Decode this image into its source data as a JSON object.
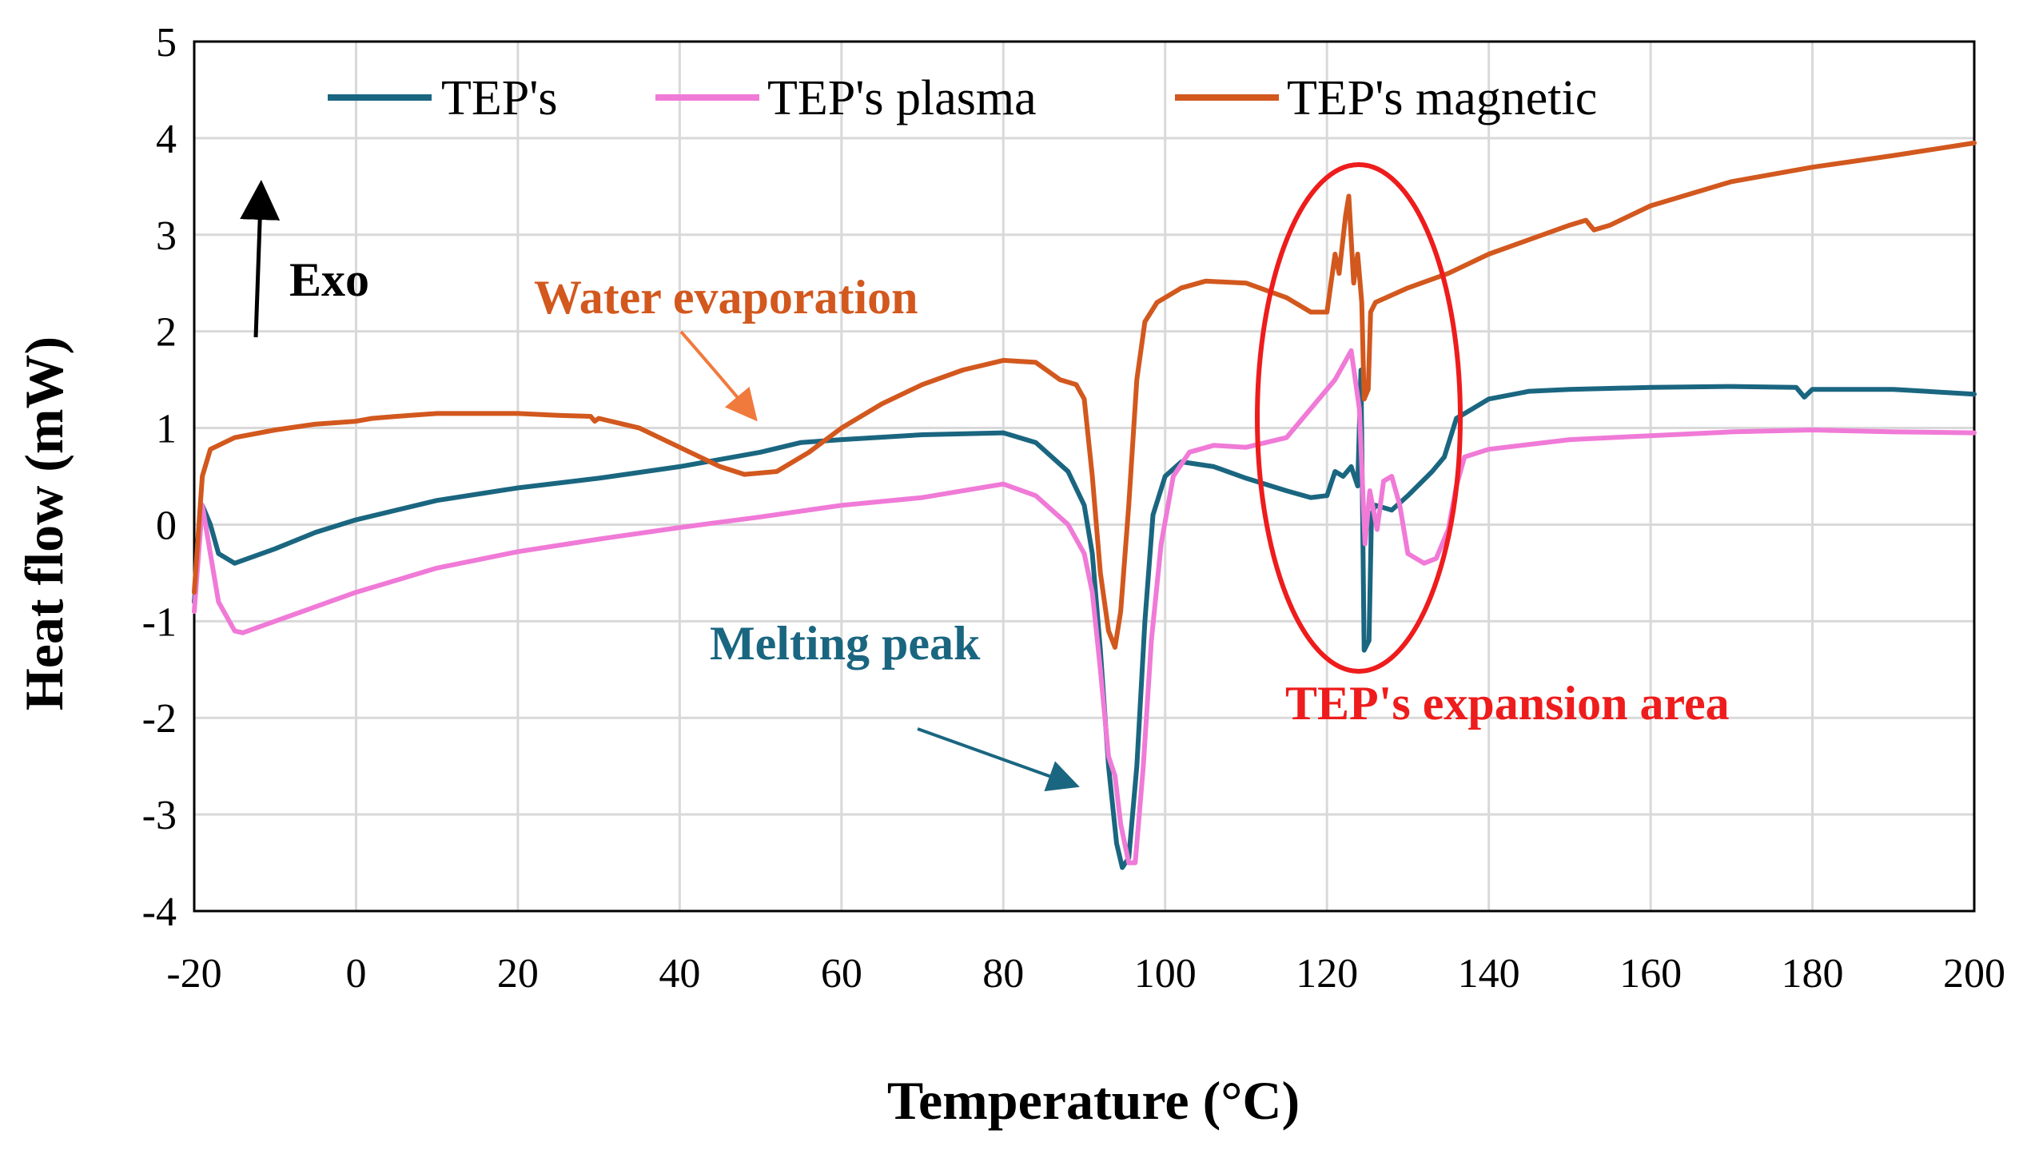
{
  "chart_data": {
    "type": "line",
    "xlabel": "Temperature (°C)",
    "ylabel": "Heat flow (mW)",
    "xlim": [
      -20,
      200
    ],
    "ylim": [
      -4,
      5
    ],
    "xticks": [
      -20,
      0,
      20,
      40,
      60,
      80,
      100,
      120,
      140,
      160,
      180,
      200
    ],
    "yticks": [
      -4,
      -3,
      -2,
      -1,
      0,
      1,
      2,
      3,
      4,
      5
    ],
    "grid": true,
    "legend_position": "top",
    "series": [
      {
        "name": "TEP's",
        "color": "#1a6680",
        "points": [
          [
            -20,
            -0.8
          ],
          [
            -19,
            0.2
          ],
          [
            -18,
            0
          ],
          [
            -17,
            -0.3
          ],
          [
            -15,
            -0.4
          ],
          [
            -10,
            -0.25
          ],
          [
            -5,
            -0.08
          ],
          [
            0,
            0.05
          ],
          [
            10,
            0.25
          ],
          [
            20,
            0.38
          ],
          [
            30,
            0.48
          ],
          [
            40,
            0.6
          ],
          [
            50,
            0.75
          ],
          [
            55,
            0.85
          ],
          [
            60,
            0.88
          ],
          [
            70,
            0.93
          ],
          [
            80,
            0.95
          ],
          [
            84,
            0.85
          ],
          [
            88,
            0.55
          ],
          [
            90,
            0.2
          ],
          [
            91,
            -0.3
          ],
          [
            92,
            -1.3
          ],
          [
            93,
            -2.5
          ],
          [
            94,
            -3.3
          ],
          [
            94.7,
            -3.55
          ],
          [
            95.5,
            -3.45
          ],
          [
            96.5,
            -2.5
          ],
          [
            97.5,
            -1.0
          ],
          [
            98.5,
            0.1
          ],
          [
            100,
            0.5
          ],
          [
            102,
            0.65
          ],
          [
            106,
            0.6
          ],
          [
            110,
            0.48
          ],
          [
            115,
            0.35
          ],
          [
            118,
            0.28
          ],
          [
            120,
            0.3
          ],
          [
            121,
            0.55
          ],
          [
            122,
            0.5
          ],
          [
            123,
            0.6
          ],
          [
            123.8,
            0.4
          ],
          [
            124.2,
            1.6
          ],
          [
            124.6,
            -1.3
          ],
          [
            125.2,
            -1.2
          ],
          [
            125.5,
            0.1
          ],
          [
            126,
            0.2
          ],
          [
            128,
            0.15
          ],
          [
            130,
            0.3
          ],
          [
            133,
            0.55
          ],
          [
            134.5,
            0.7
          ],
          [
            136,
            1.1
          ],
          [
            138,
            1.2
          ],
          [
            140,
            1.3
          ],
          [
            145,
            1.38
          ],
          [
            150,
            1.4
          ],
          [
            160,
            1.42
          ],
          [
            170,
            1.43
          ],
          [
            178,
            1.42
          ],
          [
            179,
            1.32
          ],
          [
            180,
            1.4
          ],
          [
            190,
            1.4
          ],
          [
            200,
            1.35
          ]
        ]
      },
      {
        "name": "TEP's plasma",
        "color": "#f07ad7",
        "points": [
          [
            -20,
            -0.9
          ],
          [
            -19,
            0.2
          ],
          [
            -18,
            -0.3
          ],
          [
            -17,
            -0.8
          ],
          [
            -15,
            -1.1
          ],
          [
            -14,
            -1.12
          ],
          [
            -10,
            -1.0
          ],
          [
            -5,
            -0.85
          ],
          [
            0,
            -0.7
          ],
          [
            10,
            -0.45
          ],
          [
            20,
            -0.28
          ],
          [
            30,
            -0.15
          ],
          [
            40,
            -0.03
          ],
          [
            50,
            0.08
          ],
          [
            60,
            0.2
          ],
          [
            70,
            0.28
          ],
          [
            75,
            0.35
          ],
          [
            80,
            0.42
          ],
          [
            84,
            0.3
          ],
          [
            88,
            0.0
          ],
          [
            90,
            -0.3
          ],
          [
            91,
            -0.7
          ],
          [
            92,
            -1.5
          ],
          [
            93,
            -2.4
          ],
          [
            93.8,
            -2.6
          ],
          [
            94.5,
            -3.1
          ],
          [
            95.5,
            -3.5
          ],
          [
            96.3,
            -3.5
          ],
          [
            97.3,
            -2.5
          ],
          [
            98.3,
            -1.2
          ],
          [
            99.5,
            -0.2
          ],
          [
            101,
            0.5
          ],
          [
            103,
            0.75
          ],
          [
            106,
            0.82
          ],
          [
            110,
            0.8
          ],
          [
            115,
            0.9
          ],
          [
            118,
            1.2
          ],
          [
            121,
            1.5
          ],
          [
            123,
            1.8
          ],
          [
            124,
            1.2
          ],
          [
            124.7,
            -0.2
          ],
          [
            125.3,
            0.35
          ],
          [
            126.2,
            -0.05
          ],
          [
            127,
            0.45
          ],
          [
            128,
            0.5
          ],
          [
            129,
            0.2
          ],
          [
            130,
            -0.3
          ],
          [
            132,
            -0.4
          ],
          [
            133.5,
            -0.35
          ],
          [
            135,
            -0.05
          ],
          [
            136,
            0.4
          ],
          [
            137,
            0.7
          ],
          [
            140,
            0.78
          ],
          [
            150,
            0.88
          ],
          [
            160,
            0.92
          ],
          [
            170,
            0.96
          ],
          [
            180,
            0.98
          ],
          [
            190,
            0.96
          ],
          [
            200,
            0.95
          ]
        ]
      },
      {
        "name": "TEP's magnetic",
        "color": "#d2581e",
        "points": [
          [
            -20,
            -0.7
          ],
          [
            -19,
            0.5
          ],
          [
            -18,
            0.78
          ],
          [
            -15,
            0.9
          ],
          [
            -10,
            0.98
          ],
          [
            -5,
            1.04
          ],
          [
            0,
            1.07
          ],
          [
            2,
            1.1
          ],
          [
            5,
            1.12
          ],
          [
            10,
            1.15
          ],
          [
            20,
            1.15
          ],
          [
            25,
            1.13
          ],
          [
            29,
            1.12
          ],
          [
            29.5,
            1.07
          ],
          [
            30,
            1.1
          ],
          [
            35,
            1.0
          ],
          [
            40,
            0.8
          ],
          [
            45,
            0.6
          ],
          [
            48,
            0.52
          ],
          [
            52,
            0.55
          ],
          [
            56,
            0.75
          ],
          [
            60,
            1.0
          ],
          [
            65,
            1.25
          ],
          [
            70,
            1.45
          ],
          [
            75,
            1.6
          ],
          [
            80,
            1.7
          ],
          [
            84,
            1.68
          ],
          [
            87,
            1.5
          ],
          [
            89,
            1.45
          ],
          [
            90,
            1.3
          ],
          [
            91,
            0.5
          ],
          [
            92,
            -0.5
          ],
          [
            93,
            -1.1
          ],
          [
            93.8,
            -1.27
          ],
          [
            94.5,
            -0.9
          ],
          [
            95.5,
            0.2
          ],
          [
            96.5,
            1.5
          ],
          [
            97.5,
            2.1
          ],
          [
            99,
            2.3
          ],
          [
            102,
            2.45
          ],
          [
            105,
            2.52
          ],
          [
            110,
            2.5
          ],
          [
            115,
            2.35
          ],
          [
            118,
            2.2
          ],
          [
            120,
            2.2
          ],
          [
            121,
            2.8
          ],
          [
            121.5,
            2.6
          ],
          [
            122.3,
            3.2
          ],
          [
            122.7,
            3.4
          ],
          [
            123.3,
            2.5
          ],
          [
            123.8,
            2.8
          ],
          [
            124.3,
            2.3
          ],
          [
            124.6,
            1.3
          ],
          [
            125.1,
            1.4
          ],
          [
            125.4,
            2.2
          ],
          [
            126,
            2.3
          ],
          [
            130,
            2.45
          ],
          [
            135,
            2.6
          ],
          [
            140,
            2.8
          ],
          [
            145,
            2.95
          ],
          [
            150,
            3.1
          ],
          [
            152,
            3.15
          ],
          [
            153,
            3.05
          ],
          [
            155,
            3.1
          ],
          [
            160,
            3.3
          ],
          [
            170,
            3.55
          ],
          [
            180,
            3.7
          ],
          [
            190,
            3.82
          ],
          [
            200,
            3.95
          ]
        ]
      }
    ],
    "annotations": [
      {
        "text": "Exo",
        "color": "#000000"
      },
      {
        "text": "Water evaporation",
        "color": "#d2581e"
      },
      {
        "text": "Melting peak",
        "color": "#1a6680"
      },
      {
        "text": "TEP's expansion area",
        "color": "#ee1c1c"
      }
    ]
  }
}
